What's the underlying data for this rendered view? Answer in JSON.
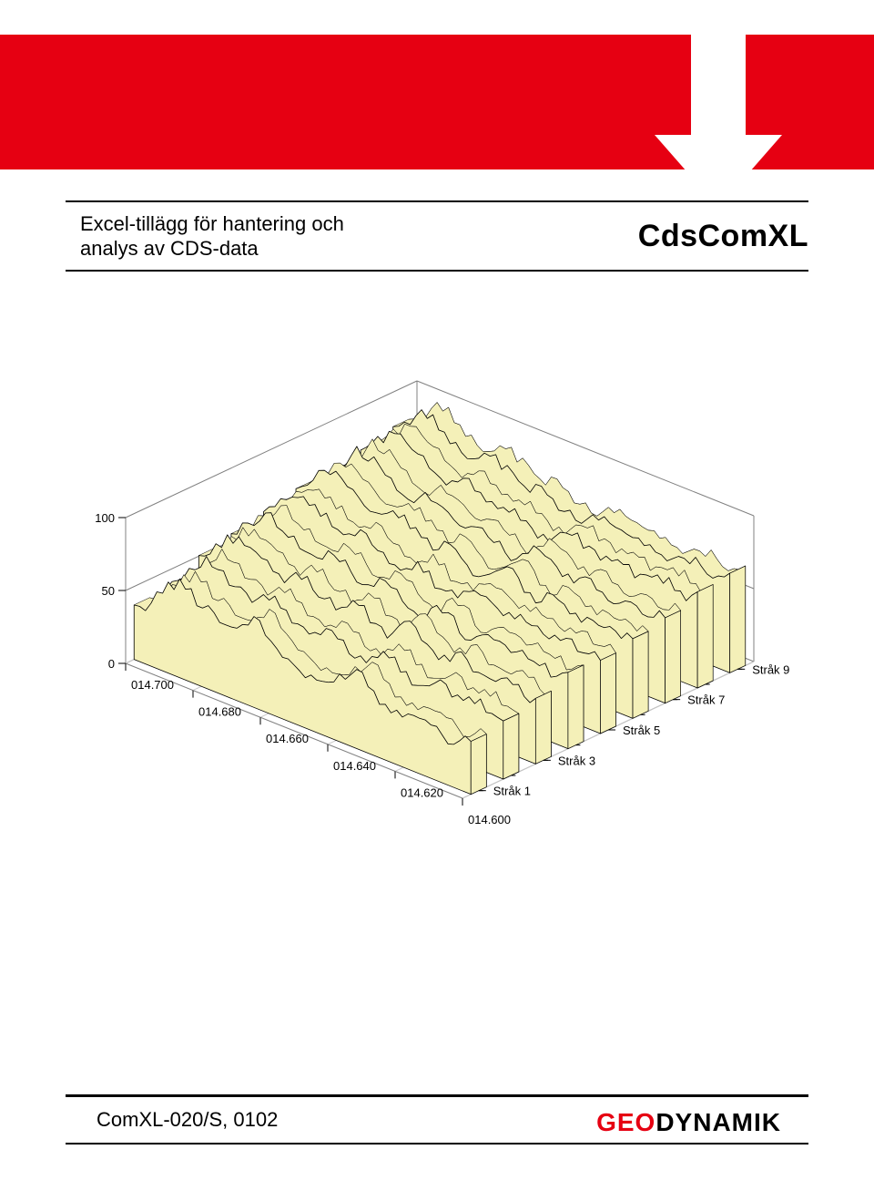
{
  "header": {
    "bar_color": "#e60012",
    "arrow_color": "#ffffff"
  },
  "title": {
    "subtitle_line1": "Excel-tillägg för hantering och",
    "subtitle_line2": "analys av CDS-data",
    "product": "CdsComXL"
  },
  "footer": {
    "doc_code": "ComXL-020/S, 0102",
    "brand_red": "GEO",
    "brand_black": "DYNAMIK"
  },
  "chart": {
    "type": "3d-ribbon",
    "background_color": "#ffffff",
    "wall_grid_color": "#808080",
    "ribbon_fill": "#f4f0b8",
    "ribbon_stroke": "#000000",
    "z_axis": {
      "ticks": [
        0,
        50,
        100
      ],
      "min": 0,
      "max": 100
    },
    "x_axis": {
      "ticks": [
        "014.700",
        "014.680",
        "014.660",
        "014.640",
        "014.620",
        "014.600"
      ],
      "min": 14.6,
      "max": 14.7
    },
    "y_axis": {
      "labels": [
        "Stråk 1",
        "Stråk 3",
        "Stråk 5",
        "Stråk 7",
        "Stråk 9"
      ]
    },
    "series_count": 9,
    "points_per_series": 60,
    "z_label_fontsize": 13,
    "x_label_fontsize": 13,
    "y_label_fontsize": 13,
    "projection": {
      "rotate_x_deg": 24,
      "rotate_z_deg": -38
    },
    "series": {
      "s1": [
        34,
        36,
        40,
        44,
        50,
        56,
        60,
        62,
        64,
        64,
        62,
        58,
        56,
        56,
        54,
        52,
        50,
        48,
        50,
        54,
        58,
        60,
        58,
        54,
        50,
        46,
        44,
        42,
        40,
        38,
        36,
        34,
        34,
        36,
        38,
        40,
        44,
        48,
        52,
        54,
        52,
        48,
        44,
        40,
        38,
        36,
        36,
        38,
        40,
        42,
        40,
        38,
        36,
        34,
        34,
        32,
        32,
        34,
        36,
        38
      ],
      "s2": [
        42,
        44,
        48,
        52,
        58,
        62,
        66,
        68,
        68,
        66,
        62,
        60,
        58,
        56,
        54,
        54,
        56,
        58,
        60,
        60,
        58,
        54,
        50,
        48,
        46,
        46,
        48,
        50,
        52,
        54,
        54,
        50,
        46,
        44,
        44,
        46,
        48,
        52,
        54,
        54,
        50,
        46,
        44,
        42,
        42,
        44,
        46,
        48,
        48,
        46,
        44,
        42,
        42,
        44,
        46,
        46,
        44,
        42,
        40,
        40
      ],
      "s3": [
        50,
        52,
        56,
        60,
        66,
        70,
        72,
        74,
        72,
        70,
        66,
        64,
        62,
        60,
        58,
        58,
        60,
        62,
        64,
        64,
        62,
        58,
        56,
        54,
        54,
        56,
        58,
        60,
        60,
        58,
        54,
        50,
        48,
        48,
        50,
        54,
        58,
        60,
        60,
        56,
        52,
        48,
        46,
        46,
        48,
        52,
        54,
        54,
        50,
        48,
        46,
        46,
        48,
        50,
        50,
        48,
        46,
        44,
        44,
        44
      ],
      "s4": [
        56,
        58,
        62,
        66,
        70,
        74,
        76,
        78,
        76,
        74,
        70,
        68,
        66,
        64,
        62,
        62,
        64,
        66,
        68,
        68,
        66,
        62,
        60,
        58,
        58,
        60,
        62,
        64,
        62,
        60,
        56,
        52,
        50,
        50,
        52,
        56,
        60,
        62,
        60,
        56,
        52,
        50,
        50,
        52,
        54,
        56,
        56,
        54,
        52,
        50,
        50,
        52,
        54,
        54,
        52,
        50,
        48,
        48,
        48,
        50
      ],
      "s5": [
        60,
        62,
        66,
        70,
        76,
        80,
        82,
        82,
        80,
        78,
        74,
        72,
        70,
        68,
        66,
        66,
        68,
        70,
        72,
        70,
        68,
        64,
        62,
        60,
        60,
        62,
        64,
        66,
        64,
        62,
        58,
        56,
        54,
        54,
        56,
        60,
        64,
        66,
        64,
        60,
        56,
        54,
        54,
        56,
        58,
        60,
        58,
        56,
        54,
        52,
        52,
        54,
        56,
        56,
        54,
        52,
        50,
        50,
        52,
        54
      ],
      "s6": [
        64,
        66,
        70,
        74,
        80,
        84,
        86,
        86,
        84,
        82,
        78,
        76,
        74,
        72,
        70,
        70,
        72,
        74,
        76,
        74,
        72,
        68,
        66,
        64,
        64,
        66,
        68,
        68,
        66,
        64,
        60,
        58,
        56,
        56,
        58,
        62,
        66,
        68,
        66,
        62,
        58,
        56,
        56,
        58,
        60,
        62,
        60,
        58,
        56,
        54,
        54,
        56,
        58,
        58,
        56,
        54,
        52,
        52,
        54,
        56
      ],
      "s7": [
        68,
        70,
        74,
        78,
        84,
        88,
        88,
        88,
        86,
        84,
        80,
        78,
        76,
        74,
        72,
        72,
        74,
        76,
        78,
        76,
        74,
        72,
        70,
        68,
        68,
        70,
        70,
        70,
        68,
        66,
        62,
        60,
        58,
        58,
        60,
        64,
        68,
        70,
        68,
        66,
        62,
        60,
        58,
        60,
        62,
        64,
        62,
        60,
        58,
        56,
        56,
        58,
        60,
        62,
        60,
        58,
        56,
        56,
        58,
        60
      ],
      "s8": [
        72,
        74,
        78,
        82,
        86,
        90,
        90,
        90,
        88,
        86,
        82,
        80,
        78,
        76,
        74,
        74,
        76,
        78,
        80,
        78,
        76,
        74,
        72,
        70,
        70,
        72,
        72,
        70,
        68,
        66,
        64,
        62,
        60,
        60,
        62,
        66,
        70,
        72,
        70,
        68,
        66,
        64,
        62,
        62,
        64,
        66,
        64,
        62,
        60,
        60,
        60,
        62,
        64,
        66,
        64,
        62,
        60,
        60,
        62,
        64
      ],
      "s9": [
        76,
        78,
        82,
        86,
        90,
        92,
        92,
        92,
        90,
        88,
        84,
        82,
        80,
        78,
        78,
        78,
        80,
        82,
        82,
        80,
        78,
        76,
        74,
        72,
        72,
        74,
        74,
        72,
        70,
        68,
        66,
        64,
        62,
        62,
        64,
        68,
        72,
        74,
        72,
        70,
        68,
        66,
        64,
        64,
        66,
        68,
        66,
        64,
        62,
        62,
        62,
        64,
        66,
        68,
        66,
        64,
        62,
        62,
        64,
        66
      ]
    },
    "noise_amp": 4,
    "ribbon_depth": 16
  }
}
